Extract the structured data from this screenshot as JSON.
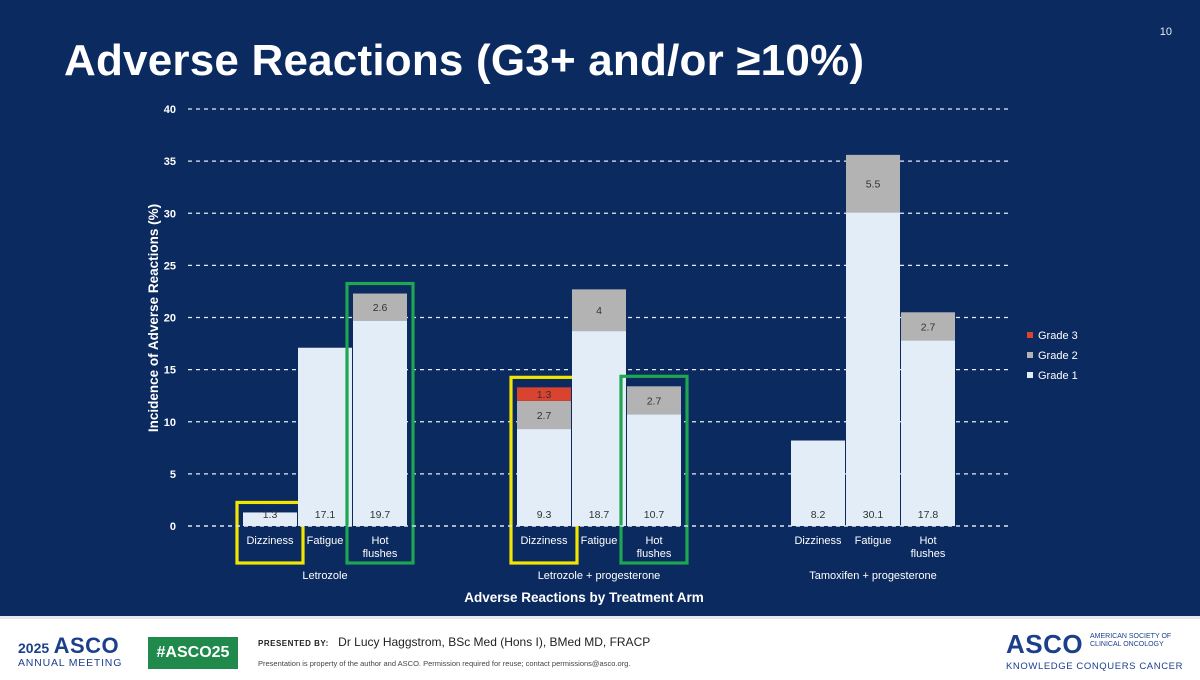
{
  "slide": {
    "number": "10",
    "title": "Adverse Reactions (G3+ and/or ≥10%)"
  },
  "chart_data": {
    "type": "bar",
    "stacked": true,
    "title": "Adverse Reactions (G3+ and/or ≥10%)",
    "ylabel": "Incidence of Adverse Reactions (%)",
    "xlabel": "Adverse Reactions by Treatment Arm",
    "ylim": [
      0,
      40
    ],
    "yticks": [
      0,
      5,
      10,
      15,
      20,
      25,
      30,
      35,
      40
    ],
    "grid": "dashed horizontal",
    "legend_position": "right",
    "series": [
      {
        "name": "Grade 3",
        "color": "#d9432f"
      },
      {
        "name": "Grade 2",
        "color": "#b3b3b3"
      },
      {
        "name": "Grade 1",
        "color": "#e3edf8"
      }
    ],
    "groups": [
      {
        "name": "Letrozole",
        "bars": [
          {
            "label": "Dizziness",
            "grade1": 1.3,
            "grade2": 0,
            "grade3": 0,
            "highlight": "yellow"
          },
          {
            "label": "Fatigue",
            "grade1": 17.1,
            "grade2": 0,
            "grade3": 0,
            "highlight": ""
          },
          {
            "label": "Hot flushes",
            "grade1": 19.7,
            "grade2": 2.6,
            "grade3": 0,
            "highlight": "green"
          }
        ]
      },
      {
        "name": "Letrozole + progesterone",
        "bars": [
          {
            "label": "Dizziness",
            "grade1": 9.3,
            "grade2": 2.7,
            "grade3": 1.3,
            "highlight": "yellow"
          },
          {
            "label": "Fatigue",
            "grade1": 18.7,
            "grade2": 4,
            "grade3": 0,
            "highlight": ""
          },
          {
            "label": "Hot flushes",
            "grade1": 10.7,
            "grade2": 2.7,
            "grade3": 0,
            "highlight": "green"
          }
        ]
      },
      {
        "name": "Tamoxifen + progesterone",
        "bars": [
          {
            "label": "Dizziness",
            "grade1": 8.2,
            "grade2": 0,
            "grade3": 0,
            "highlight": ""
          },
          {
            "label": "Fatigue",
            "grade1": 30.1,
            "grade2": 5.5,
            "grade3": 0,
            "highlight": ""
          },
          {
            "label": "Hot flushes",
            "grade1": 17.8,
            "grade2": 2.7,
            "grade3": 0,
            "highlight": ""
          }
        ]
      }
    ],
    "highlight_colors": {
      "yellow": "#f2e600",
      "green": "#1fa650"
    }
  },
  "footer": {
    "year": "2025",
    "brand": "ASCO",
    "meeting": "ANNUAL MEETING",
    "hashtag": "#ASCO25",
    "presented_label": "PRESENTED BY:",
    "presenter": "Dr Lucy Haggstrom, BSc Med (Hons I), BMed MD, FRACP",
    "disclaimer": "Presentation is property of the author and ASCO. Permission required for reuse; contact permissions@asco.org.",
    "logo_word": "ASCO",
    "logo_society": "AMERICAN SOCIETY OF CLINICAL ONCOLOGY",
    "tagline": "KNOWLEDGE CONQUERS CANCER"
  }
}
